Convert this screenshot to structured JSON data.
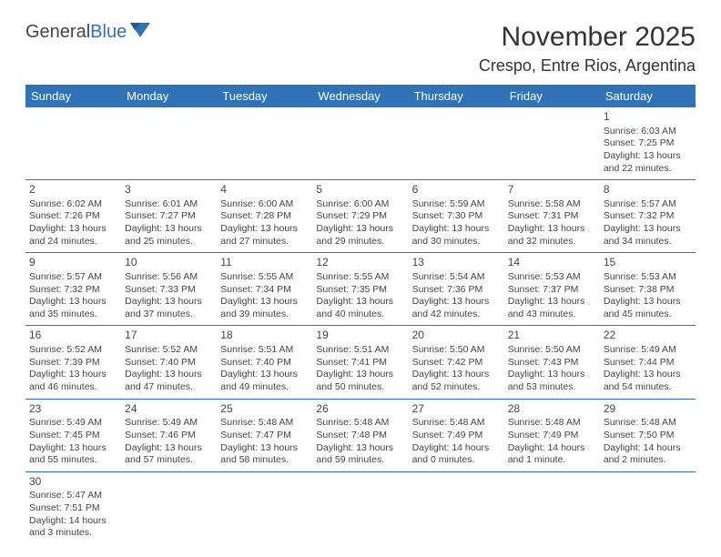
{
  "brand": {
    "part1": "General",
    "part2": "Blue"
  },
  "title": "November 2025",
  "location": "Crespo, Entre Rios, Argentina",
  "colors": {
    "header_bg": "#2f72b6",
    "header_text": "#ffffff",
    "border": "#2f72b6",
    "body_text": "#444444",
    "title_text": "#333333",
    "background": "#ffffff"
  },
  "typography": {
    "title_fontsize": 30,
    "location_fontsize": 18,
    "dayheader_fontsize": 13,
    "cell_fontsize": 10.5,
    "daynum_fontsize": 12,
    "logo_fontsize": 20
  },
  "day_headers": [
    "Sunday",
    "Monday",
    "Tuesday",
    "Wednesday",
    "Thursday",
    "Friday",
    "Saturday"
  ],
  "weeks": [
    [
      {
        "day": "",
        "sunrise": "",
        "sunset": "",
        "daylight": ""
      },
      {
        "day": "",
        "sunrise": "",
        "sunset": "",
        "daylight": ""
      },
      {
        "day": "",
        "sunrise": "",
        "sunset": "",
        "daylight": ""
      },
      {
        "day": "",
        "sunrise": "",
        "sunset": "",
        "daylight": ""
      },
      {
        "day": "",
        "sunrise": "",
        "sunset": "",
        "daylight": ""
      },
      {
        "day": "",
        "sunrise": "",
        "sunset": "",
        "daylight": ""
      },
      {
        "day": "1",
        "sunrise": "Sunrise: 6:03 AM",
        "sunset": "Sunset: 7:25 PM",
        "daylight": "Daylight: 13 hours and 22 minutes."
      }
    ],
    [
      {
        "day": "2",
        "sunrise": "Sunrise: 6:02 AM",
        "sunset": "Sunset: 7:26 PM",
        "daylight": "Daylight: 13 hours and 24 minutes."
      },
      {
        "day": "3",
        "sunrise": "Sunrise: 6:01 AM",
        "sunset": "Sunset: 7:27 PM",
        "daylight": "Daylight: 13 hours and 25 minutes."
      },
      {
        "day": "4",
        "sunrise": "Sunrise: 6:00 AM",
        "sunset": "Sunset: 7:28 PM",
        "daylight": "Daylight: 13 hours and 27 minutes."
      },
      {
        "day": "5",
        "sunrise": "Sunrise: 6:00 AM",
        "sunset": "Sunset: 7:29 PM",
        "daylight": "Daylight: 13 hours and 29 minutes."
      },
      {
        "day": "6",
        "sunrise": "Sunrise: 5:59 AM",
        "sunset": "Sunset: 7:30 PM",
        "daylight": "Daylight: 13 hours and 30 minutes."
      },
      {
        "day": "7",
        "sunrise": "Sunrise: 5:58 AM",
        "sunset": "Sunset: 7:31 PM",
        "daylight": "Daylight: 13 hours and 32 minutes."
      },
      {
        "day": "8",
        "sunrise": "Sunrise: 5:57 AM",
        "sunset": "Sunset: 7:32 PM",
        "daylight": "Daylight: 13 hours and 34 minutes."
      }
    ],
    [
      {
        "day": "9",
        "sunrise": "Sunrise: 5:57 AM",
        "sunset": "Sunset: 7:32 PM",
        "daylight": "Daylight: 13 hours and 35 minutes."
      },
      {
        "day": "10",
        "sunrise": "Sunrise: 5:56 AM",
        "sunset": "Sunset: 7:33 PM",
        "daylight": "Daylight: 13 hours and 37 minutes."
      },
      {
        "day": "11",
        "sunrise": "Sunrise: 5:55 AM",
        "sunset": "Sunset: 7:34 PM",
        "daylight": "Daylight: 13 hours and 39 minutes."
      },
      {
        "day": "12",
        "sunrise": "Sunrise: 5:55 AM",
        "sunset": "Sunset: 7:35 PM",
        "daylight": "Daylight: 13 hours and 40 minutes."
      },
      {
        "day": "13",
        "sunrise": "Sunrise: 5:54 AM",
        "sunset": "Sunset: 7:36 PM",
        "daylight": "Daylight: 13 hours and 42 minutes."
      },
      {
        "day": "14",
        "sunrise": "Sunrise: 5:53 AM",
        "sunset": "Sunset: 7:37 PM",
        "daylight": "Daylight: 13 hours and 43 minutes."
      },
      {
        "day": "15",
        "sunrise": "Sunrise: 5:53 AM",
        "sunset": "Sunset: 7:38 PM",
        "daylight": "Daylight: 13 hours and 45 minutes."
      }
    ],
    [
      {
        "day": "16",
        "sunrise": "Sunrise: 5:52 AM",
        "sunset": "Sunset: 7:39 PM",
        "daylight": "Daylight: 13 hours and 46 minutes."
      },
      {
        "day": "17",
        "sunrise": "Sunrise: 5:52 AM",
        "sunset": "Sunset: 7:40 PM",
        "daylight": "Daylight: 13 hours and 47 minutes."
      },
      {
        "day": "18",
        "sunrise": "Sunrise: 5:51 AM",
        "sunset": "Sunset: 7:40 PM",
        "daylight": "Daylight: 13 hours and 49 minutes."
      },
      {
        "day": "19",
        "sunrise": "Sunrise: 5:51 AM",
        "sunset": "Sunset: 7:41 PM",
        "daylight": "Daylight: 13 hours and 50 minutes."
      },
      {
        "day": "20",
        "sunrise": "Sunrise: 5:50 AM",
        "sunset": "Sunset: 7:42 PM",
        "daylight": "Daylight: 13 hours and 52 minutes."
      },
      {
        "day": "21",
        "sunrise": "Sunrise: 5:50 AM",
        "sunset": "Sunset: 7:43 PM",
        "daylight": "Daylight: 13 hours and 53 minutes."
      },
      {
        "day": "22",
        "sunrise": "Sunrise: 5:49 AM",
        "sunset": "Sunset: 7:44 PM",
        "daylight": "Daylight: 13 hours and 54 minutes."
      }
    ],
    [
      {
        "day": "23",
        "sunrise": "Sunrise: 5:49 AM",
        "sunset": "Sunset: 7:45 PM",
        "daylight": "Daylight: 13 hours and 55 minutes."
      },
      {
        "day": "24",
        "sunrise": "Sunrise: 5:49 AM",
        "sunset": "Sunset: 7:46 PM",
        "daylight": "Daylight: 13 hours and 57 minutes."
      },
      {
        "day": "25",
        "sunrise": "Sunrise: 5:48 AM",
        "sunset": "Sunset: 7:47 PM",
        "daylight": "Daylight: 13 hours and 58 minutes."
      },
      {
        "day": "26",
        "sunrise": "Sunrise: 5:48 AM",
        "sunset": "Sunset: 7:48 PM",
        "daylight": "Daylight: 13 hours and 59 minutes."
      },
      {
        "day": "27",
        "sunrise": "Sunrise: 5:48 AM",
        "sunset": "Sunset: 7:49 PM",
        "daylight": "Daylight: 14 hours and 0 minutes."
      },
      {
        "day": "28",
        "sunrise": "Sunrise: 5:48 AM",
        "sunset": "Sunset: 7:49 PM",
        "daylight": "Daylight: 14 hours and 1 minute."
      },
      {
        "day": "29",
        "sunrise": "Sunrise: 5:48 AM",
        "sunset": "Sunset: 7:50 PM",
        "daylight": "Daylight: 14 hours and 2 minutes."
      }
    ],
    [
      {
        "day": "30",
        "sunrise": "Sunrise: 5:47 AM",
        "sunset": "Sunset: 7:51 PM",
        "daylight": "Daylight: 14 hours and 3 minutes."
      },
      {
        "day": "",
        "sunrise": "",
        "sunset": "",
        "daylight": ""
      },
      {
        "day": "",
        "sunrise": "",
        "sunset": "",
        "daylight": ""
      },
      {
        "day": "",
        "sunrise": "",
        "sunset": "",
        "daylight": ""
      },
      {
        "day": "",
        "sunrise": "",
        "sunset": "",
        "daylight": ""
      },
      {
        "day": "",
        "sunrise": "",
        "sunset": "",
        "daylight": ""
      },
      {
        "day": "",
        "sunrise": "",
        "sunset": "",
        "daylight": ""
      }
    ]
  ]
}
